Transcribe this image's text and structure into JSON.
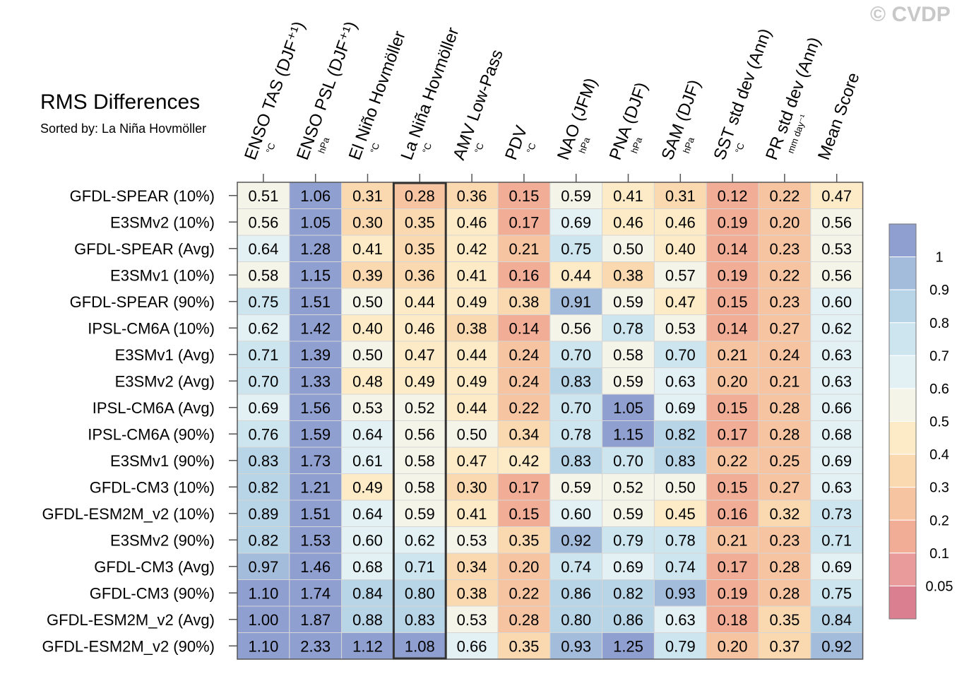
{
  "title": "RMS Differences",
  "subtitle": "Sorted by: La Niña Hovmöller",
  "watermark": "© CVDP",
  "chart_data": {
    "type": "heatmap",
    "columns": [
      {
        "name": "ENSO TAS (DJF⁺¹)",
        "unit": "°C"
      },
      {
        "name": "ENSO PSL (DJF⁺¹)",
        "unit": "hPa"
      },
      {
        "name": "El Niño Hovmöller",
        "unit": "°C"
      },
      {
        "name": "La Niña Hovmöller",
        "unit": "°C"
      },
      {
        "name": "AMV Low-Pass",
        "unit": "°C"
      },
      {
        "name": "PDV",
        "unit": "°C"
      },
      {
        "name": "NAO (JFM)",
        "unit": "hPa"
      },
      {
        "name": "PNA (DJF)",
        "unit": "hPa"
      },
      {
        "name": "SAM (DJF)",
        "unit": "hPa"
      },
      {
        "name": "SST std dev (Ann)",
        "unit": "°C"
      },
      {
        "name": "PR std dev (Ann)",
        "unit": "mm day⁻¹"
      },
      {
        "name": "Mean Score",
        "unit": ""
      }
    ],
    "rows": [
      "GFDL-SPEAR (10%)",
      "E3SMv2 (10%)",
      "GFDL-SPEAR (Avg)",
      "E3SMv1 (10%)",
      "GFDL-SPEAR (90%)",
      "IPSL-CM6A (10%)",
      "E3SMv1 (Avg)",
      "E3SMv2 (Avg)",
      "IPSL-CM6A (Avg)",
      "IPSL-CM6A (90%)",
      "E3SMv1 (90%)",
      "GFDL-CM3 (10%)",
      "GFDL-ESM2M_v2 (10%)",
      "E3SMv2 (90%)",
      "GFDL-CM3 (Avg)",
      "GFDL-CM3 (90%)",
      "GFDL-ESM2M_v2 (Avg)",
      "GFDL-ESM2M_v2 (90%)"
    ],
    "values": [
      [
        0.51,
        1.06,
        0.31,
        0.28,
        0.36,
        0.15,
        0.59,
        0.41,
        0.31,
        0.12,
        0.22,
        0.47
      ],
      [
        0.56,
        1.05,
        0.3,
        0.35,
        0.46,
        0.17,
        0.69,
        0.46,
        0.46,
        0.19,
        0.2,
        0.56
      ],
      [
        0.64,
        1.28,
        0.41,
        0.35,
        0.42,
        0.21,
        0.75,
        0.5,
        0.4,
        0.14,
        0.23,
        0.53
      ],
      [
        0.58,
        1.15,
        0.39,
        0.36,
        0.41,
        0.16,
        0.44,
        0.38,
        0.57,
        0.19,
        0.22,
        0.56
      ],
      [
        0.75,
        1.51,
        0.5,
        0.44,
        0.49,
        0.38,
        0.91,
        0.59,
        0.47,
        0.15,
        0.23,
        0.6
      ],
      [
        0.62,
        1.42,
        0.4,
        0.46,
        0.38,
        0.14,
        0.56,
        0.78,
        0.53,
        0.14,
        0.27,
        0.62
      ],
      [
        0.71,
        1.39,
        0.5,
        0.47,
        0.44,
        0.24,
        0.7,
        0.58,
        0.7,
        0.21,
        0.24,
        0.63
      ],
      [
        0.7,
        1.33,
        0.48,
        0.49,
        0.49,
        0.24,
        0.83,
        0.59,
        0.63,
        0.2,
        0.21,
        0.63
      ],
      [
        0.69,
        1.56,
        0.53,
        0.52,
        0.44,
        0.22,
        0.7,
        1.05,
        0.69,
        0.15,
        0.28,
        0.66
      ],
      [
        0.76,
        1.59,
        0.64,
        0.56,
        0.5,
        0.34,
        0.78,
        1.15,
        0.82,
        0.17,
        0.28,
        0.68
      ],
      [
        0.83,
        1.73,
        0.61,
        0.58,
        0.47,
        0.42,
        0.83,
        0.7,
        0.83,
        0.22,
        0.25,
        0.69
      ],
      [
        0.82,
        1.21,
        0.49,
        0.58,
        0.3,
        0.17,
        0.59,
        0.52,
        0.5,
        0.15,
        0.27,
        0.63
      ],
      [
        0.89,
        1.51,
        0.64,
        0.59,
        0.41,
        0.15,
        0.6,
        0.59,
        0.45,
        0.16,
        0.32,
        0.73
      ],
      [
        0.82,
        1.53,
        0.6,
        0.62,
        0.53,
        0.35,
        0.92,
        0.79,
        0.78,
        0.21,
        0.23,
        0.71
      ],
      [
        0.97,
        1.46,
        0.68,
        0.71,
        0.34,
        0.2,
        0.74,
        0.69,
        0.74,
        0.17,
        0.28,
        0.69
      ],
      [
        1.1,
        1.74,
        0.84,
        0.8,
        0.38,
        0.22,
        0.86,
        0.82,
        0.93,
        0.19,
        0.28,
        0.75
      ],
      [
        1.0,
        1.87,
        0.88,
        0.83,
        0.53,
        0.28,
        0.8,
        0.86,
        0.63,
        0.18,
        0.35,
        0.84
      ],
      [
        1.1,
        2.33,
        1.12,
        1.08,
        0.66,
        0.35,
        0.93,
        1.25,
        0.79,
        0.2,
        0.37,
        0.92
      ]
    ],
    "highlight_column": "La Niña Hovmöller",
    "colorbar": {
      "boundaries": [
        0.05,
        0.1,
        0.2,
        0.3,
        0.4,
        0.5,
        0.6,
        0.7,
        0.8,
        0.9,
        1
      ],
      "labels": [
        "0.05",
        "0.1",
        "0.2",
        "0.3",
        "0.4",
        "0.5",
        "0.6",
        "0.7",
        "0.8",
        "0.9",
        "1"
      ],
      "colors": [
        "#d97f90",
        "#e99a9a",
        "#f2ad96",
        "#f6c4a0",
        "#fad9b0",
        "#fcebc6",
        "#f5f4e9",
        "#e3f0f4",
        "#cde5ef",
        "#b8d4e7",
        "#a4bcdc",
        "#8e9fd0"
      ],
      "placement": "right"
    }
  }
}
